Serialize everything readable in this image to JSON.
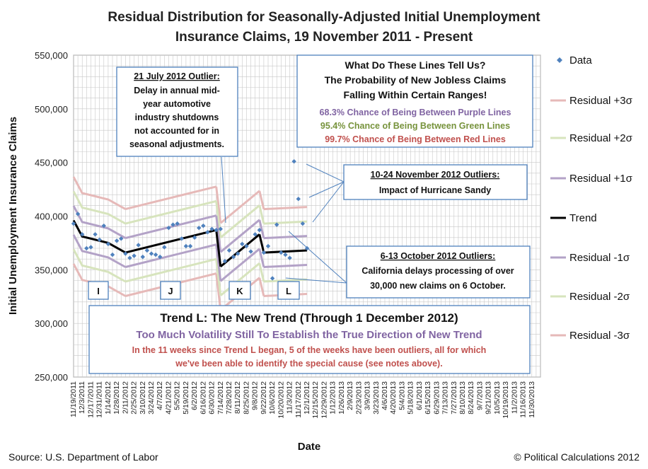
{
  "chart_data": {
    "type": "line",
    "title_lines": [
      "Residual Distribution for Seasonally-Adjusted Initial Unemployment",
      "Insurance Claims, 19 November 2011 - Present"
    ],
    "xlabel": "Date",
    "ylabel": "Initial Unemployment Insurance Claims",
    "ylim": [
      250000,
      550000
    ],
    "yticks": [
      "250,000",
      "300,000",
      "350,000",
      "400,000",
      "450,000",
      "500,000",
      "550,000"
    ],
    "ytick_values": [
      250000,
      300000,
      350000,
      400000,
      450000,
      500000,
      550000
    ],
    "x_start": "11/19/2011",
    "x_end": "12/14/2013",
    "xticks": [
      "11/19/2011",
      "12/3/2011",
      "12/17/2011",
      "12/31/2011",
      "1/14/2012",
      "1/28/2012",
      "2/11/2012",
      "2/25/2012",
      "3/10/2012",
      "3/24/2012",
      "4/7/2012",
      "4/21/2012",
      "5/5/2012",
      "5/19/2012",
      "6/2/2012",
      "6/16/2012",
      "6/30/2012",
      "7/14/2012",
      "7/28/2012",
      "8/11/2012",
      "8/25/2012",
      "9/8/2012",
      "9/22/2012",
      "10/6/2012",
      "10/20/2012",
      "11/3/2012",
      "11/17/2012",
      "12/1/2012",
      "12/15/2012",
      "12/29/2012",
      "1/12/2013",
      "1/26/2013",
      "2/9/2013",
      "2/23/2013",
      "3/9/2013",
      "3/23/2013",
      "4/6/2013",
      "4/20/2013",
      "5/4/2013",
      "5/18/2013",
      "6/1/2013",
      "6/15/2013",
      "6/29/2013",
      "7/13/2013",
      "7/27/2013",
      "8/10/2013",
      "8/24/2013",
      "9/7/2013",
      "9/21/2013",
      "10/5/2013",
      "10/19/2013",
      "11/2/2013",
      "11/16/2013",
      "11/30/2013"
    ],
    "grid": true,
    "legend_position": "right",
    "sigma": 13500,
    "trends": [
      {
        "label": "I",
        "points": [
          [
            "11/19/2011",
            396000
          ],
          [
            "12/3/2011",
            381000
          ],
          [
            "1/14/2012",
            375000
          ],
          [
            "2/11/2012",
            366000
          ]
        ]
      },
      {
        "label": "J",
        "points": [
          [
            "2/11/2012",
            366000
          ],
          [
            "7/7/2012",
            387000
          ]
        ]
      },
      {
        "label": "K",
        "points": [
          [
            "7/14/2012",
            353000
          ],
          [
            "9/15/2012",
            383000
          ]
        ]
      },
      {
        "label": "L",
        "points": [
          [
            "9/22/2012",
            366000
          ],
          [
            "12/1/2012",
            368000
          ]
        ]
      }
    ],
    "data_points": [
      [
        "11/19/2011",
        393000
      ],
      [
        "11/26/2011",
        402000
      ],
      [
        "12/3/2011",
        383000
      ],
      [
        "12/10/2011",
        370000
      ],
      [
        "12/17/2011",
        371000
      ],
      [
        "12/24/2011",
        383000
      ],
      [
        "12/31/2011",
        378000
      ],
      [
        "1/7/2012",
        391000
      ],
      [
        "1/14/2012",
        374000
      ],
      [
        "1/21/2012",
        364000
      ],
      [
        "1/28/2012",
        377000
      ],
      [
        "2/4/2012",
        379000
      ],
      [
        "2/11/2012",
        365000
      ],
      [
        "2/18/2012",
        361000
      ],
      [
        "2/25/2012",
        363000
      ],
      [
        "3/3/2012",
        373000
      ],
      [
        "3/10/2012",
        362000
      ],
      [
        "3/17/2012",
        368000
      ],
      [
        "3/24/2012",
        365000
      ],
      [
        "3/31/2012",
        364000
      ],
      [
        "4/7/2012",
        362000
      ],
      [
        "4/14/2012",
        371000
      ],
      [
        "4/21/2012",
        389000
      ],
      [
        "4/28/2012",
        392000
      ],
      [
        "5/5/2012",
        393000
      ],
      [
        "5/12/2012",
        379000
      ],
      [
        "5/19/2012",
        372000
      ],
      [
        "5/26/2012",
        372000
      ],
      [
        "6/2/2012",
        380000
      ],
      [
        "6/9/2012",
        389000
      ],
      [
        "6/16/2012",
        391000
      ],
      [
        "6/23/2012",
        385000
      ],
      [
        "6/30/2012",
        388000
      ],
      [
        "7/7/2012",
        387000
      ],
      [
        "7/14/2012",
        388000
      ],
      [
        "7/21/2012",
        358000
      ],
      [
        "7/28/2012",
        368000
      ],
      [
        "8/4/2012",
        362000
      ],
      [
        "8/11/2012",
        365000
      ],
      [
        "8/18/2012",
        374000
      ],
      [
        "8/25/2012",
        372000
      ],
      [
        "9/1/2012",
        367000
      ],
      [
        "9/8/2012",
        383000
      ],
      [
        "9/15/2012",
        387000
      ],
      [
        "9/22/2012",
        366000
      ],
      [
        "9/29/2012",
        372000
      ],
      [
        "10/6/2012",
        342000
      ],
      [
        "10/13/2012",
        392000
      ],
      [
        "10/20/2012",
        366000
      ],
      [
        "10/27/2012",
        364000
      ],
      [
        "11/3/2012",
        361000
      ],
      [
        "11/10/2012",
        451000
      ],
      [
        "11/17/2012",
        416000
      ],
      [
        "11/24/2012",
        393000
      ],
      [
        "12/1/2012",
        370000
      ]
    ],
    "legend": [
      "Data",
      "Residual +3σ",
      "Residual +2σ",
      "Residual +1σ",
      "Trend",
      "Residual -1σ",
      "Residual -2σ",
      "Residual -3σ"
    ],
    "colors": {
      "data": "#4f81bd",
      "sigma1": "#b3a2c7",
      "sigma2": "#d7e4bd",
      "sigma3": "#e6b9b8",
      "trend": "#000000",
      "grid": "#c8c8c8",
      "box_border": "#4f81bd",
      "arrow": "#4f81bd"
    }
  },
  "annotations": {
    "july": {
      "lines": [
        "21 July 2012 Outlier:",
        "Delay in annual mid-",
        "year automotive",
        "industry shutdowns",
        "not accounted for in",
        "seasonal adjustments."
      ]
    },
    "lines_box": {
      "lines": [
        "What Do These Lines Tell Us?",
        "The Probability of New Jobless Claims",
        "Falling Within Certain Ranges!"
      ],
      "purple": "68.3% Chance of Being Between Purple Lines",
      "green": "95.4% Chance of Being Between Green Lines",
      "red": "99.7% Chance of Being Between Red Lines"
    },
    "november": {
      "lines": [
        "10-24 November 2012 Outliers:",
        "Impact of Hurricane Sandy"
      ]
    },
    "october": {
      "lines": [
        "6-13 October 2012 Outliers:",
        "California delays processing of over",
        "30,000 new claims on 6 October."
      ]
    },
    "trend_l": {
      "title": "Trend L: The New Trend (Through 1 December 2012)",
      "subtitle": "Too Much Volatility Still To Establish the True Direction of New Trend",
      "lines": [
        "In the 11 weeks since Trend L began, 5 of the weeks have been outliers, all for which",
        "we've been able to identify the special cause (see notes above)."
      ]
    }
  },
  "footer": {
    "source": "Source: U.S. Department of Labor",
    "copyright": "© Political Calculations 2012"
  }
}
